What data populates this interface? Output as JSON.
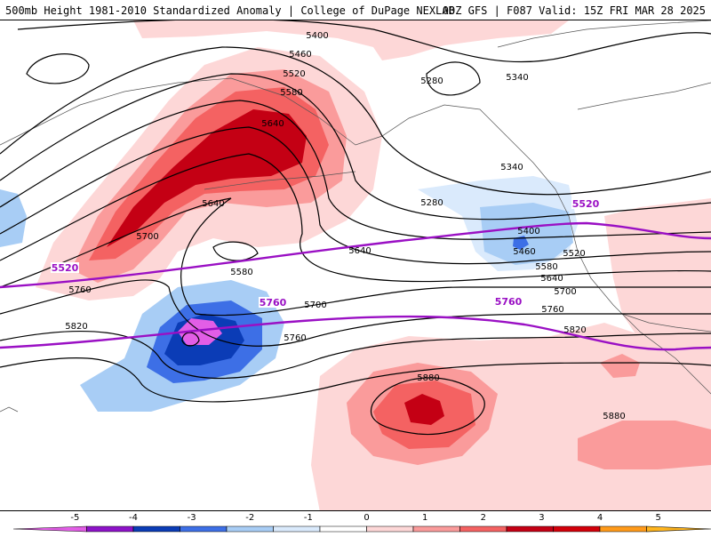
{
  "header": {
    "title_left": "500mb Height 1981-2010 Standardized Anomaly | College of DuPage NEXLAB",
    "title_right": "00Z GFS | F087 Valid: 15Z FRI MAR 28 2025"
  },
  "contour_labels": [
    {
      "text": "5400"
    },
    {
      "text": "5460"
    },
    {
      "text": "5520"
    },
    {
      "text": "5580"
    },
    {
      "text": "5640"
    },
    {
      "text": "5640"
    },
    {
      "text": "5700"
    },
    {
      "text": "5760"
    },
    {
      "text": "5580"
    },
    {
      "text": "5640"
    },
    {
      "text": "5700"
    },
    {
      "text": "5760"
    },
    {
      "text": "5820"
    },
    {
      "text": "5280"
    },
    {
      "text": "5340"
    },
    {
      "text": "5340"
    },
    {
      "text": "5280"
    },
    {
      "text": "5400"
    },
    {
      "text": "5460"
    },
    {
      "text": "5520"
    },
    {
      "text": "5580"
    },
    {
      "text": "5640"
    },
    {
      "text": "5700"
    },
    {
      "text": "5760"
    },
    {
      "text": "5820"
    },
    {
      "text": "5880"
    },
    {
      "text": "5880"
    }
  ],
  "climo_labels": [
    {
      "text": "5520"
    },
    {
      "text": "5520"
    },
    {
      "text": "5760"
    },
    {
      "text": "5760"
    }
  ],
  "colorbar": {
    "ticks": [
      "-5",
      "-4",
      "-3",
      "-2",
      "-1",
      "0",
      "1",
      "2",
      "3",
      "4",
      "5"
    ],
    "colors": [
      "#e25ee6",
      "#8d12c8",
      "#0b3cb6",
      "#3d6fe6",
      "#a8cdf5",
      "#daeafc",
      "#ffffff",
      "#fdd7d7",
      "#fa9b9b",
      "#f46262",
      "#c40014",
      "#d2000a",
      "#ff9a1a",
      "#ffb51e"
    ]
  }
}
